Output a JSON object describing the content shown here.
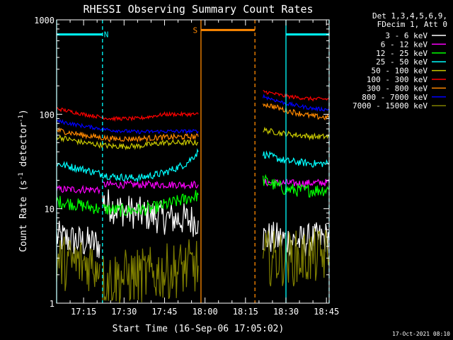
{
  "chart_data": {
    "type": "line",
    "title": "RHESSI Observing Summary Count Rates",
    "xlabel": "Start Time (16-Sep-06 17:05:02)",
    "ylabel_main": "Count Rate (s",
    "ylabel_sup1": "-1",
    "ylabel_mid": " detector",
    "ylabel_sup2": "-1",
    "ylabel_end": ")",
    "yscale": "log",
    "ylim": [
      1,
      1000
    ],
    "xlim_min": [
      0,
      101
    ],
    "x_ticks": [
      {
        "label": "17:15",
        "min": 10
      },
      {
        "label": "17:30",
        "min": 25
      },
      {
        "label": "17:45",
        "min": 40
      },
      {
        "label": "18:00",
        "min": 55
      },
      {
        "label": "18:15",
        "min": 70
      },
      {
        "label": "18:30",
        "min": 85
      },
      {
        "label": "18:45",
        "min": 100
      }
    ],
    "y_ticks": [
      {
        "label": "1",
        "v": 1
      },
      {
        "label": "10",
        "v": 10
      },
      {
        "label": "100",
        "v": 100
      },
      {
        "label": "1000",
        "v": 1000
      }
    ],
    "legend_header": [
      "Det 1,3,4,5,6,9,",
      "FDecim 1, Att 0"
    ],
    "series": [
      {
        "name": "3 - 6 keV",
        "color": "#ffffff",
        "noise": 0.18,
        "segments": [
          [
            [
              0,
              5
            ],
            [
              8,
              4.5
            ],
            [
              16,
              4.2
            ]
          ],
          [
            [
              17,
              12
            ],
            [
              22,
              10
            ],
            [
              30,
              9
            ],
            [
              40,
              8
            ],
            [
              52.5,
              7.5
            ]
          ],
          [
            [
              76.5,
              5
            ],
            [
              82,
              4.8
            ],
            [
              90,
              4.5
            ],
            [
              101,
              5
            ]
          ]
        ]
      },
      {
        "name": "6 - 12 keV",
        "color": "#ff00ff",
        "noise": 0.04,
        "segments": [
          [
            [
              0,
              16
            ],
            [
              16,
              16
            ]
          ],
          [
            [
              17,
              18
            ],
            [
              30,
              18
            ],
            [
              40,
              18
            ],
            [
              52.5,
              18
            ]
          ],
          [
            [
              76.5,
              19
            ],
            [
              90,
              18.5
            ],
            [
              101,
              19
            ]
          ]
        ]
      },
      {
        "name": "12 - 25 keV",
        "color": "#00ff00",
        "noise": 0.07,
        "segments": [
          [
            [
              0,
              12
            ],
            [
              8,
              11
            ],
            [
              16,
              10
            ]
          ],
          [
            [
              17,
              10
            ],
            [
              25,
              9.5
            ],
            [
              35,
              10
            ],
            [
              45,
              12
            ],
            [
              52.5,
              14
            ]
          ],
          [
            [
              76.5,
              20
            ],
            [
              85,
              16
            ],
            [
              92,
              15.5
            ],
            [
              101,
              16
            ]
          ]
        ]
      },
      {
        "name": "25 - 50 keV",
        "color": "#00ffff",
        "noise": 0.04,
        "segments": [
          [
            [
              0,
              30
            ],
            [
              10,
              26
            ],
            [
              20,
              22
            ],
            [
              30,
              21
            ],
            [
              40,
              24
            ],
            [
              48,
              30
            ],
            [
              52.5,
              40
            ]
          ],
          [
            [
              76.5,
              38
            ],
            [
              85,
              32
            ],
            [
              95,
              30
            ],
            [
              101,
              30
            ]
          ]
        ]
      },
      {
        "name": "50 - 100 keV",
        "color": "#c8c800",
        "noise": 0.03,
        "segments": [
          [
            [
              0,
              58
            ],
            [
              10,
              50
            ],
            [
              20,
              46
            ],
            [
              30,
              46
            ],
            [
              40,
              50
            ],
            [
              52.5,
              50
            ]
          ],
          [
            [
              76.5,
              68
            ],
            [
              85,
              62
            ],
            [
              95,
              58
            ],
            [
              101,
              58
            ]
          ]
        ]
      },
      {
        "name": "100 - 300 keV",
        "color": "#ff0000",
        "noise": 0.02,
        "segments": [
          [
            [
              0,
              115
            ],
            [
              10,
              100
            ],
            [
              20,
              90
            ],
            [
              30,
              90
            ],
            [
              40,
              100
            ],
            [
              52.5,
              100
            ]
          ],
          [
            [
              76.5,
              175
            ],
            [
              85,
              155
            ],
            [
              95,
              145
            ],
            [
              101,
              145
            ]
          ]
        ]
      },
      {
        "name": "300 - 800 keV",
        "color": "#ff8800",
        "noise": 0.03,
        "segments": [
          [
            [
              0,
              68
            ],
            [
              10,
              60
            ],
            [
              20,
              55
            ],
            [
              30,
              55
            ],
            [
              40,
              57
            ],
            [
              52.5,
              58
            ]
          ],
          [
            [
              76.5,
              130
            ],
            [
              85,
              110
            ],
            [
              95,
              95
            ],
            [
              101,
              92
            ]
          ]
        ]
      },
      {
        "name": "800 - 7000 keV",
        "color": "#0000ff",
        "noise": 0.02,
        "segments": [
          [
            [
              0,
              85
            ],
            [
              10,
              75
            ],
            [
              20,
              68
            ],
            [
              30,
              65
            ],
            [
              40,
              66
            ],
            [
              52.5,
              66
            ]
          ],
          [
            [
              76.5,
              155
            ],
            [
              85,
              130
            ],
            [
              95,
              115
            ],
            [
              101,
              112
            ]
          ]
        ]
      },
      {
        "name": "7000 - 15000 keV",
        "color": "#808000",
        "noise": 0.3,
        "segments": [
          [
            [
              0,
              2.7
            ],
            [
              16,
              2.6
            ]
          ],
          [
            [
              17,
              1.8
            ],
            [
              35,
              2
            ],
            [
              52.5,
              2.5
            ]
          ],
          [
            [
              76.5,
              3
            ],
            [
              90,
              3
            ],
            [
              101,
              3.2
            ]
          ]
        ]
      }
    ],
    "flags": [
      {
        "label": "N",
        "color": "#00ffff",
        "level": 700,
        "intervals": [
          [
            0,
            17
          ]
        ],
        "label_at": 17.5
      },
      {
        "label": "N",
        "color": "#00ffff",
        "level": 700,
        "intervals": [
          [
            85,
            101
          ]
        ],
        "label_at": null
      },
      {
        "label": "S",
        "color": "#ff8800",
        "level": 780,
        "intervals": [
          [
            53.5,
            73.5
          ]
        ],
        "label_at": 50.5
      }
    ],
    "vlines": [
      {
        "min": 0,
        "color": "#00ffff",
        "style": "solid"
      },
      {
        "min": 17,
        "color": "#00ffff",
        "style": "dashed"
      },
      {
        "min": 53.5,
        "color": "#ff8800",
        "style": "solid"
      },
      {
        "min": 73.5,
        "color": "#ff8800",
        "style": "dashed"
      },
      {
        "min": 85,
        "color": "#00ffff",
        "style": "solid"
      },
      {
        "min": 101,
        "color": "#00ffff",
        "style": "dashed"
      }
    ],
    "footer_date": "17-Oct-2021 08:10"
  }
}
